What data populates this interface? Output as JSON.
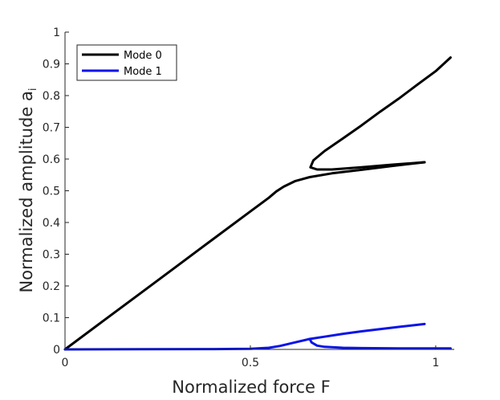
{
  "chart_data": {
    "type": "line",
    "xlabel": "Normalized force F",
    "ylabel": "Normalized amplitude a",
    "ylabel_subscript": "i",
    "xlim": [
      0,
      1.05
    ],
    "ylim": [
      0,
      1
    ],
    "x_ticks": [
      0,
      0.5,
      1
    ],
    "x_tick_labels": [
      "0",
      "0.5",
      "1"
    ],
    "y_ticks": [
      0,
      0.1,
      0.2,
      0.3,
      0.4,
      0.5,
      0.6,
      0.7,
      0.8,
      0.9,
      1
    ],
    "y_tick_labels": [
      "0",
      "0.1",
      "0.2",
      "0.3",
      "0.4",
      "0.5",
      "0.6",
      "0.7",
      "0.8",
      "0.9",
      "1"
    ],
    "grid": false,
    "legend_position": "top-left",
    "series": [
      {
        "name": "Mode 0",
        "color": "#000000",
        "branches": [
          {
            "x": [
              0,
              0.1,
              0.2,
              0.3,
              0.4,
              0.5,
              0.55,
              0.57,
              0.59,
              0.62,
              0.66,
              0.72,
              0.8,
              0.88,
              0.97
            ],
            "y": [
              0,
              0.087,
              0.174,
              0.261,
              0.348,
              0.435,
              0.478,
              0.498,
              0.513,
              0.53,
              0.543,
              0.555,
              0.566,
              0.578,
              0.59
            ]
          },
          {
            "x": [
              0.97,
              0.88,
              0.8,
              0.72,
              0.68,
              0.662,
              0.67,
              0.7,
              0.75,
              0.8,
              0.85,
              0.9,
              0.95,
              1.0,
              1.04
            ],
            "y": [
              0.59,
              0.582,
              0.574,
              0.567,
              0.567,
              0.574,
              0.596,
              0.625,
              0.665,
              0.706,
              0.749,
              0.79,
              0.834,
              0.877,
              0.92
            ]
          }
        ]
      },
      {
        "name": "Mode 1",
        "color": "#0a14e8",
        "branches": [
          {
            "x": [
              0,
              0.2,
              0.4,
              0.5,
              0.55,
              0.58,
              0.62,
              0.66,
              0.7,
              0.75,
              0.8,
              0.85,
              0.9,
              0.97
            ],
            "y": [
              0,
              0.0005,
              0.001,
              0.002,
              0.005,
              0.011,
              0.022,
              0.033,
              0.04,
              0.049,
              0.057,
              0.064,
              0.071,
              0.08
            ]
          },
          {
            "x": [
              0.66,
              0.665,
              0.68,
              0.7,
              0.75,
              0.8,
              0.9,
              1.0,
              1.04
            ],
            "y": [
              0.033,
              0.022,
              0.012,
              0.008,
              0.005,
              0.004,
              0.003,
              0.003,
              0.003
            ]
          }
        ]
      }
    ]
  }
}
